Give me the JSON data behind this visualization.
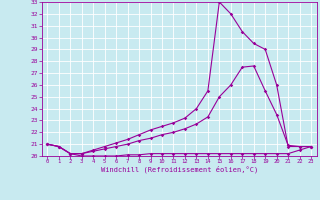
{
  "xlabel": "Windchill (Refroidissement éolien,°C)",
  "bg_color": "#c8eaf0",
  "grid_color": "#ffffff",
  "line_color": "#990099",
  "xlim": [
    -0.5,
    23.5
  ],
  "ylim": [
    20,
    33
  ],
  "yticks": [
    20,
    21,
    22,
    23,
    24,
    25,
    26,
    27,
    28,
    29,
    30,
    31,
    32,
    33
  ],
  "xticks": [
    0,
    1,
    2,
    3,
    4,
    5,
    6,
    7,
    8,
    9,
    10,
    11,
    12,
    13,
    14,
    15,
    16,
    17,
    18,
    19,
    20,
    21,
    22,
    23
  ],
  "line1_x": [
    0,
    1,
    2,
    3,
    4,
    5,
    6,
    7,
    8,
    9,
    10,
    11,
    12,
    13,
    14,
    15,
    16,
    17,
    18,
    19,
    20,
    21,
    22,
    23
  ],
  "line1_y": [
    21.0,
    20.8,
    20.2,
    20.0,
    20.0,
    20.0,
    20.0,
    20.1,
    20.1,
    20.2,
    20.2,
    20.2,
    20.2,
    20.2,
    20.2,
    20.2,
    20.2,
    20.2,
    20.2,
    20.2,
    20.2,
    20.2,
    20.5,
    20.8
  ],
  "line2_x": [
    0,
    1,
    2,
    3,
    4,
    5,
    6,
    7,
    8,
    9,
    10,
    11,
    12,
    13,
    14,
    15,
    16,
    17,
    18,
    19,
    20,
    21,
    22,
    23
  ],
  "line2_y": [
    21.0,
    20.8,
    20.2,
    20.2,
    20.4,
    20.6,
    20.8,
    21.0,
    21.3,
    21.5,
    21.8,
    22.0,
    22.3,
    22.7,
    23.3,
    25.0,
    26.0,
    27.5,
    27.6,
    25.5,
    23.5,
    20.9,
    20.8,
    20.8
  ],
  "line3_x": [
    0,
    1,
    2,
    3,
    4,
    5,
    6,
    7,
    8,
    9,
    10,
    11,
    12,
    13,
    14,
    15,
    16,
    17,
    18,
    19,
    20,
    21,
    22,
    23
  ],
  "line3_y": [
    21.0,
    20.8,
    20.2,
    20.2,
    20.5,
    20.8,
    21.1,
    21.4,
    21.8,
    22.2,
    22.5,
    22.8,
    23.2,
    24.0,
    25.5,
    33.0,
    32.0,
    30.5,
    29.5,
    29.0,
    26.0,
    20.8,
    20.8,
    20.8
  ],
  "marker": "D",
  "marker_size": 1.8,
  "linewidth": 0.8
}
